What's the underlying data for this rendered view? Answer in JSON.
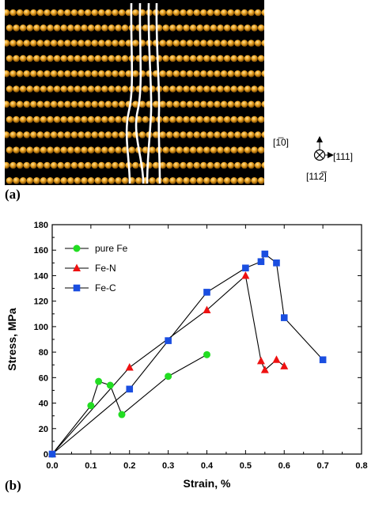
{
  "panel_a": {
    "label": "(a)",
    "directions": {
      "top": "[1̅0]",
      "right": "[111]",
      "bottom": "[112̅]"
    },
    "atom_color": "#e8a020",
    "background": "#000000"
  },
  "panel_b": {
    "label": "(b)"
  },
  "chart_data": {
    "type": "line",
    "xlabel": "Strain, %",
    "ylabel": "Stress, MPa",
    "xlim": [
      0.0,
      0.8
    ],
    "ylim": [
      0,
      180
    ],
    "xticks": [
      "0.0",
      "0.1",
      "0.2",
      "0.3",
      "0.4",
      "0.5",
      "0.6",
      "0.7",
      "0.8"
    ],
    "yticks": [
      "0",
      "20",
      "40",
      "60",
      "80",
      "100",
      "120",
      "140",
      "160",
      "180"
    ],
    "legend_position": "top-left",
    "series": [
      {
        "name": "pure Fe",
        "color": "#22dd22",
        "marker": "circle",
        "x": [
          0.0,
          0.1,
          0.12,
          0.15,
          0.18,
          0.3,
          0.4
        ],
        "y": [
          0,
          38,
          57,
          54,
          31,
          61,
          78
        ]
      },
      {
        "name": "Fe-N",
        "color": "#ee1111",
        "marker": "triangle",
        "x": [
          0.0,
          0.2,
          0.4,
          0.5,
          0.54,
          0.55,
          0.58,
          0.6
        ],
        "y": [
          0,
          68,
          113,
          140,
          73,
          66,
          74,
          69
        ]
      },
      {
        "name": "Fe-C",
        "color": "#1a4ee0",
        "marker": "square",
        "x": [
          0.0,
          0.2,
          0.3,
          0.4,
          0.5,
          0.54,
          0.55,
          0.58,
          0.6,
          0.7
        ],
        "y": [
          0,
          51,
          89,
          127,
          146,
          151,
          157,
          150,
          107,
          74
        ]
      }
    ]
  }
}
